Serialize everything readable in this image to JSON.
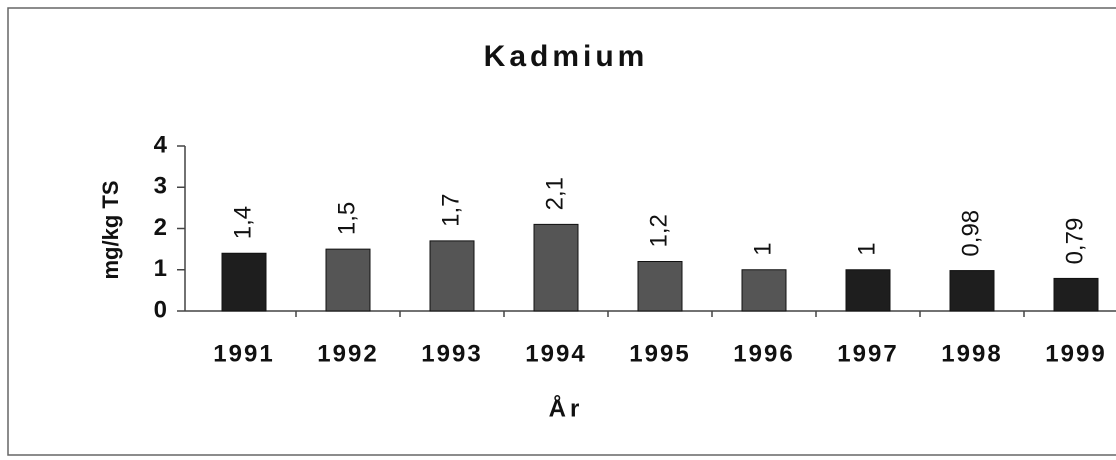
{
  "chart_data": {
    "type": "bar",
    "title": "Kadmium",
    "x_label": "År",
    "y_label": "mg/kg TS",
    "categories": [
      "1991",
      "1992",
      "1993",
      "1994",
      "1995",
      "1996",
      "1997",
      "1998",
      "1999"
    ],
    "values": [
      1.4,
      1.5,
      1.7,
      2.1,
      1.2,
      1,
      1,
      0.98,
      0.79
    ],
    "value_labels": [
      "1,4",
      "1,5",
      "1,7",
      "2,1",
      "1,2",
      "1",
      "1",
      "0,98",
      "0,79"
    ],
    "colors": [
      "#1e1e1e",
      "#555555",
      "#555555",
      "#555555",
      "#555555",
      "#555555",
      "#1e1e1e",
      "#1e1e1e",
      "#1e1e1e"
    ],
    "ylim": [
      0,
      4
    ],
    "yticks": [
      0,
      1,
      2,
      3,
      4
    ],
    "grid": false
  }
}
